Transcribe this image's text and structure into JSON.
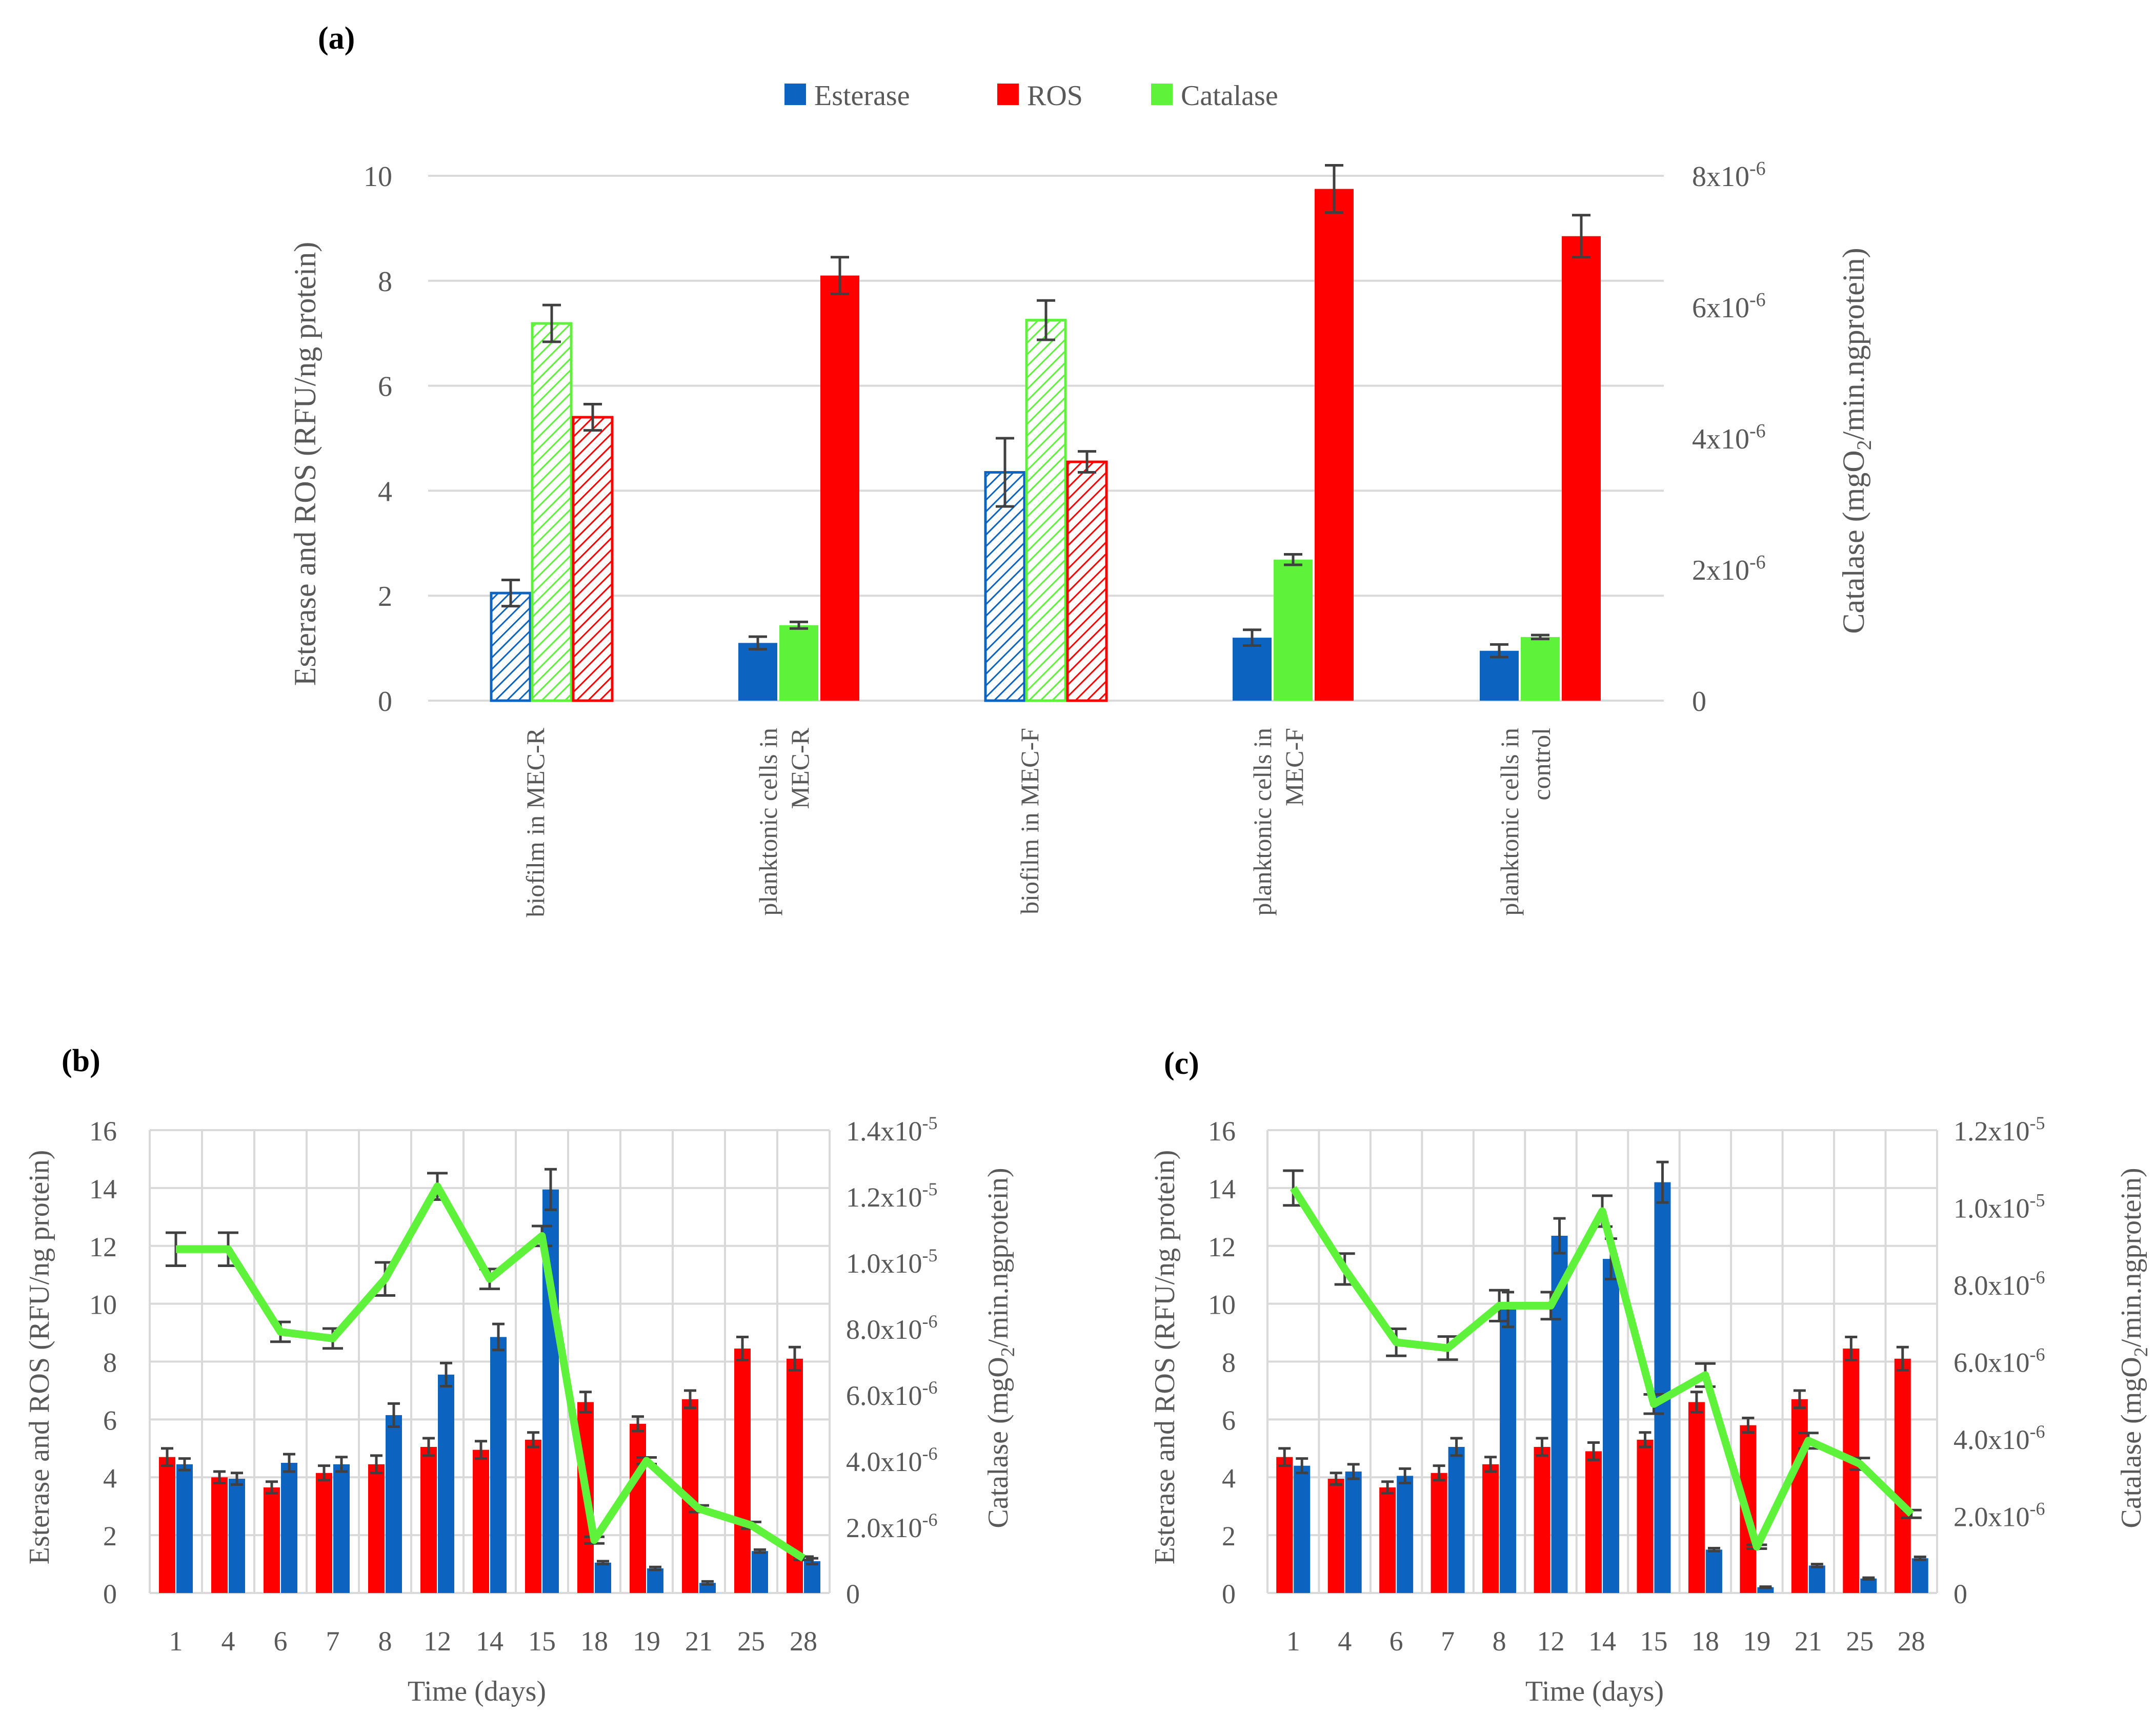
{
  "colors": {
    "esterase": "#0D64C0",
    "ros": "#FF0000",
    "catalase": "#5EF23A",
    "grid": "#D9D9D9",
    "axis_text": "#595959",
    "error_bar": "#404040"
  },
  "chart_data": [
    {
      "id": "a",
      "panel_label": "(a)",
      "type": "bar",
      "legend": [
        "Esterase",
        "ROS",
        "Catalase"
      ],
      "categories": [
        [
          "biofilm in MEC-R"
        ],
        [
          "planktonic cells in",
          "MEC-R"
        ],
        [
          "biofilm in MEC-F"
        ],
        [
          "planktonic cells in",
          "MEC-F"
        ],
        [
          "planktonic cells in",
          "control"
        ]
      ],
      "hatched": [
        true,
        false,
        true,
        false,
        false
      ],
      "series": [
        {
          "name": "Esterase",
          "axis": "left",
          "values": [
            2.05,
            1.1,
            4.35,
            1.2,
            0.95
          ],
          "errors": [
            0.25,
            0.12,
            0.65,
            0.15,
            0.12
          ]
        },
        {
          "name": "Catalase",
          "axis": "right",
          "values": [
            5.75e-06,
            1.15e-06,
            5.8e-06,
            2.15e-06,
            9.7e-07
          ],
          "errors": [
            2.8e-07,
            5e-08,
            3e-07,
            8e-08,
            3e-08
          ]
        },
        {
          "name": "ROS",
          "axis": "right_of_group",
          "values": [
            5.4,
            8.1,
            4.55,
            9.75,
            8.85
          ],
          "errors": [
            0.25,
            0.35,
            0.2,
            0.45,
            0.4
          ]
        }
      ],
      "ylabel": "Esterase and ROS (RFU/ng protein)",
      "y2label": [
        "Catalase (mgO",
        "2",
        "/min.ngprotein)"
      ],
      "ylim": [
        0,
        10
      ],
      "yticks": [
        "0",
        "2",
        "4",
        "6",
        "8",
        "10"
      ],
      "y2lim": [
        0,
        8e-06
      ],
      "y2ticks": [
        "0",
        "2x10",
        "4x10",
        "6x10",
        "8x10"
      ],
      "y2tick_exp": "-6"
    },
    {
      "id": "b",
      "panel_label": "(b)",
      "type": "bar+line",
      "categories": [
        "1",
        "4",
        "6",
        "7",
        "8",
        "12",
        "14",
        "15",
        "18",
        "19",
        "21",
        "25",
        "28"
      ],
      "xlabel": "Time (days)",
      "ylabel": "Esterase and ROS (RFU/ng protein)",
      "y2label": [
        "Catalase (mgO",
        "2",
        "/min.ngprotein)"
      ],
      "ylim": [
        0,
        16
      ],
      "yticks": [
        "0",
        "2",
        "4",
        "6",
        "8",
        "10",
        "12",
        "14",
        "16"
      ],
      "y2lim": [
        0,
        1.4e-05
      ],
      "y2ticks": [
        "0",
        "2.0x10",
        "4.0x10",
        "6.0x10",
        "8.0x10",
        "1.0x10",
        "1.2x10",
        "1.4x10"
      ],
      "y2tick_exps": [
        "",
        "-6",
        "-6",
        "-6",
        "-6",
        "-5",
        "-5",
        "-5"
      ],
      "series": [
        {
          "name": "ROS",
          "type": "bar",
          "values": [
            4.7,
            4.0,
            3.65,
            4.15,
            4.45,
            5.05,
            4.95,
            5.3,
            6.6,
            5.85,
            6.7,
            8.45,
            8.1
          ],
          "errors": [
            0.3,
            0.2,
            0.2,
            0.25,
            0.3,
            0.3,
            0.3,
            0.25,
            0.35,
            0.25,
            0.3,
            0.4,
            0.4
          ]
        },
        {
          "name": "Esterase",
          "type": "bar",
          "values": [
            4.45,
            3.95,
            4.5,
            4.45,
            6.15,
            7.55,
            8.85,
            13.95,
            1.05,
            0.85,
            0.35,
            1.45,
            1.1
          ],
          "errors": [
            0.2,
            0.2,
            0.3,
            0.25,
            0.4,
            0.4,
            0.45,
            0.7,
            0.05,
            0.05,
            0.05,
            0.05,
            0.1
          ]
        },
        {
          "name": "Catalase",
          "type": "line",
          "values": [
            1.04e-05,
            1.04e-05,
            7.9e-06,
            7.7e-06,
            9.5e-06,
            1.23e-05,
            9.5e-06,
            1.08e-05,
            1.6e-06,
            4e-06,
            2.55e-06,
            2.05e-06,
            1.05e-06
          ],
          "errors": [
            5e-07,
            5e-07,
            3e-07,
            3e-07,
            5e-07,
            4e-07,
            3e-07,
            3e-07,
            1e-07,
            1e-07,
            1e-07,
            1e-07,
            5e-08
          ]
        }
      ]
    },
    {
      "id": "c",
      "panel_label": "(c)",
      "type": "bar+line",
      "categories": [
        "1",
        "4",
        "6",
        "7",
        "8",
        "12",
        "14",
        "15",
        "18",
        "19",
        "21",
        "25",
        "28"
      ],
      "xlabel": "Time (days)",
      "ylabel": "Esterase and ROS (RFU/ng protein)",
      "y2label": [
        "Catalase (mgO",
        "2",
        "/min.ngprotein)"
      ],
      "ylim": [
        0,
        16
      ],
      "yticks": [
        "0",
        "2",
        "4",
        "6",
        "8",
        "10",
        "12",
        "14",
        "16"
      ],
      "y2lim": [
        0,
        1.2e-05
      ],
      "y2ticks": [
        "0",
        "2.0x10",
        "4.0x10",
        "6.0x10",
        "8.0x10",
        "1.0x10",
        "1.2x10"
      ],
      "y2tick_exps": [
        "",
        "-6",
        "-6",
        "-6",
        "-6",
        "-5",
        "-5"
      ],
      "series": [
        {
          "name": "ROS",
          "type": "bar",
          "values": [
            4.7,
            3.95,
            3.65,
            4.15,
            4.45,
            5.05,
            4.9,
            5.3,
            6.6,
            5.8,
            6.7,
            8.45,
            8.1
          ],
          "errors": [
            0.3,
            0.2,
            0.2,
            0.25,
            0.25,
            0.3,
            0.3,
            0.25,
            0.35,
            0.25,
            0.3,
            0.4,
            0.4
          ]
        },
        {
          "name": "Esterase",
          "type": "bar",
          "values": [
            4.4,
            4.2,
            4.05,
            5.05,
            9.8,
            12.35,
            11.55,
            14.2,
            1.5,
            0.2,
            0.95,
            0.5,
            1.2
          ],
          "errors": [
            0.25,
            0.25,
            0.25,
            0.3,
            0.6,
            0.6,
            0.7,
            0.7,
            0.05,
            0.02,
            0.05,
            0.03,
            0.05
          ]
        },
        {
          "name": "Catalase",
          "type": "line",
          "values": [
            1.05e-05,
            8.4e-06,
            6.5e-06,
            6.35e-06,
            7.45e-06,
            7.45e-06,
            9.9e-06,
            4.9e-06,
            5.65e-06,
            1.2e-06,
            3.95e-06,
            3.35e-06,
            2.05e-06
          ],
          "errors": [
            4.5e-07,
            4e-07,
            3.5e-07,
            3e-07,
            4e-07,
            3.5e-07,
            4e-07,
            2.5e-07,
            3e-07,
            5e-08,
            2e-07,
            1.5e-07,
            1e-07
          ]
        }
      ]
    }
  ]
}
